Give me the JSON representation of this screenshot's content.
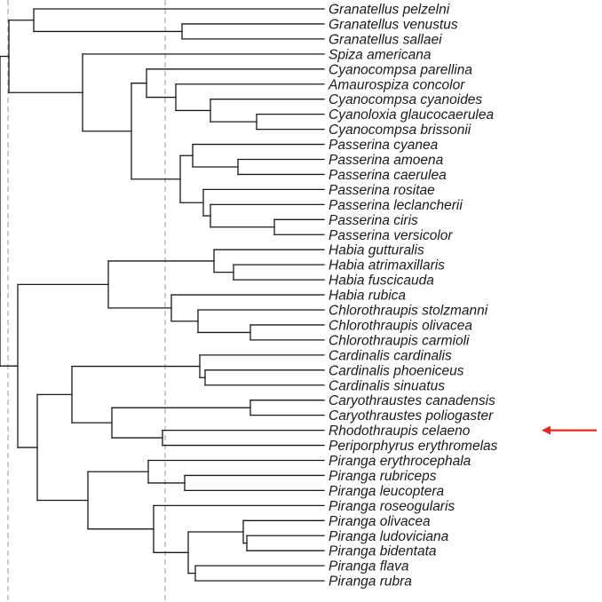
{
  "tree": {
    "taxa": [
      "Granatellus pelzelni",
      "Granatellus venustus",
      "Granatellus sallaei",
      "Spiza americana",
      "Cyanocompsa parellina",
      "Amaurospiza concolor",
      "Cyanocompsa cyanoides",
      "Cyanoloxia glaucocaerulea",
      "Cyanocompsa brissonii",
      "Passerina cyanea",
      "Passerina amoena",
      "Passerina caerulea",
      "Passerina rositae",
      "Passerina leclancherii",
      "Passerina ciris",
      "Passerina versicolor",
      "Habia gutturalis",
      "Habia atrimaxillaris",
      "Habia fuscicauda",
      "Habia rubica",
      "Chlorothraupis stolzmanni",
      "Chlorothraupis olivacea",
      "Chlorothraupis carmioli",
      "Cardinalis cardinalis",
      "Cardinalis phoeniceus",
      "Cardinalis sinuatus",
      "Caryothraustes canadensis",
      "Caryothraustes poliogaster",
      "Rhodothraupis celaeno",
      "Periporphyrus erythromelas",
      "Piranga erythrocephala",
      "Piranga rubriceps",
      "Piranga leucoptera",
      "Piranga roseogularis",
      "Piranga olivacea",
      "Piranga ludoviciana",
      "Piranga bidentata",
      "Piranga flava",
      "Piranga rubra"
    ],
    "highlighted_taxon": "Rhodothraupis celaeno",
    "colors": {
      "branch": "#1a1a1a",
      "reference_line": "#9a9a9a",
      "marker_arrow": "#e8251f"
    }
  }
}
